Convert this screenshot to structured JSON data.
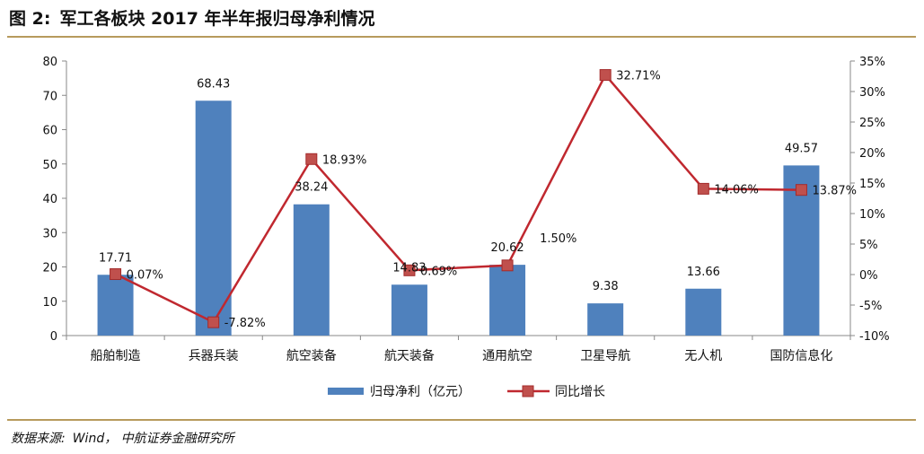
{
  "figure": {
    "number": "图 2:",
    "title": "军工各板块 2017 年半年报归母净利情况"
  },
  "source": {
    "label": "数据来源:",
    "text": "Wind， 中航证券金融研究所"
  },
  "colors": {
    "bar": "#4f81bd",
    "line": "#c0282f",
    "marker": "#c0504d",
    "rule": "#b79a5c"
  },
  "chart_data": {
    "type": "bar",
    "categories": [
      "船舶制造",
      "兵器兵装",
      "航空装备",
      "航天装备",
      "通用航空",
      "卫星导航",
      "无人机",
      "国防信息化"
    ],
    "series": [
      {
        "name": "归母净利（亿元）",
        "type": "bar",
        "axis": "left",
        "values": [
          17.71,
          68.43,
          38.24,
          14.83,
          20.62,
          9.38,
          13.66,
          49.57
        ],
        "labels": [
          "17.71",
          "68.43",
          "38.24",
          "14.83",
          "20.62",
          "9.38",
          "13.66",
          "49.57"
        ]
      },
      {
        "name": "同比增长",
        "type": "line",
        "axis": "right",
        "values": [
          0.07,
          -7.82,
          18.93,
          0.69,
          1.5,
          32.71,
          14.06,
          13.87
        ],
        "labels": [
          "0.07%",
          "-7.82%",
          "18.93%",
          "0.69%",
          "1.50%",
          "32.71%",
          "14.06%",
          "13.87%"
        ]
      }
    ],
    "y_left": {
      "min": 0,
      "max": 80,
      "ticks": [
        "0",
        "10",
        "20",
        "30",
        "40",
        "50",
        "60",
        "70",
        "80"
      ]
    },
    "y_right": {
      "min": -10,
      "max": 35,
      "ticks": [
        "-10%",
        "-5%",
        "0%",
        "5%",
        "10%",
        "15%",
        "20%",
        "25%",
        "30%",
        "35%"
      ]
    },
    "grid": false,
    "legend_position": "bottom"
  }
}
